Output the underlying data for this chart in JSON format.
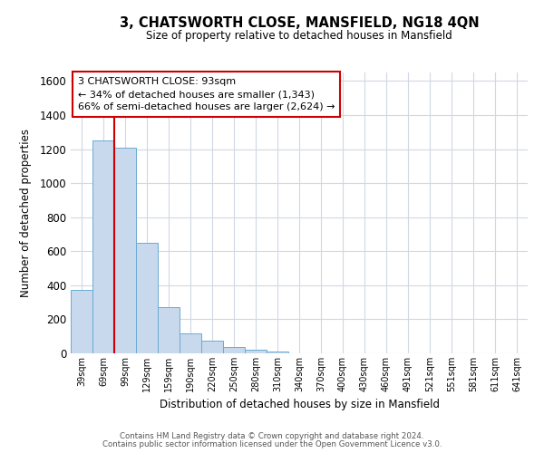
{
  "title": "3, CHATSWORTH CLOSE, MANSFIELD, NG18 4QN",
  "subtitle": "Size of property relative to detached houses in Mansfield",
  "xlabel": "Distribution of detached houses by size in Mansfield",
  "ylabel": "Number of detached properties",
  "bar_labels": [
    "39sqm",
    "69sqm",
    "99sqm",
    "129sqm",
    "159sqm",
    "190sqm",
    "220sqm",
    "250sqm",
    "280sqm",
    "310sqm",
    "340sqm",
    "370sqm",
    "400sqm",
    "430sqm",
    "460sqm",
    "491sqm",
    "521sqm",
    "551sqm",
    "581sqm",
    "611sqm",
    "641sqm"
  ],
  "bar_values": [
    370,
    1250,
    1210,
    650,
    270,
    115,
    75,
    35,
    20,
    10,
    0,
    0,
    0,
    0,
    0,
    0,
    0,
    0,
    0,
    0,
    0
  ],
  "bar_color": "#c8d9ee",
  "bar_edge_color": "#6aaad4",
  "vline_color": "#cc0000",
  "ylim": [
    0,
    1650
  ],
  "yticks": [
    0,
    200,
    400,
    600,
    800,
    1000,
    1200,
    1400,
    1600
  ],
  "annotation_line1": "3 CHATSWORTH CLOSE: 93sqm",
  "annotation_line2": "← 34% of detached houses are smaller (1,343)",
  "annotation_line3": "66% of semi-detached houses are larger (2,624) →",
  "footer1": "Contains HM Land Registry data © Crown copyright and database right 2024.",
  "footer2": "Contains public sector information licensed under the Open Government Licence v3.0.",
  "bg_color": "#ffffff",
  "grid_color": "#d0d8e4"
}
